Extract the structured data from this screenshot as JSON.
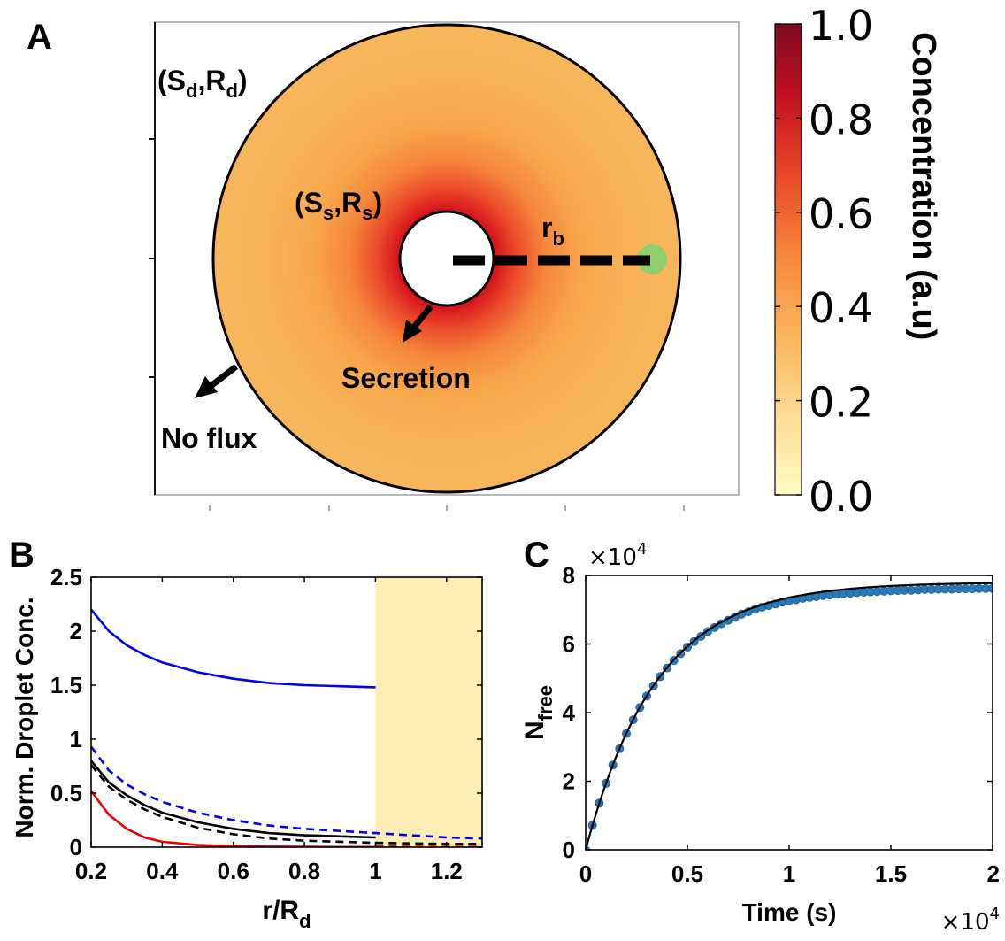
{
  "panels": {
    "A": {
      "letter": "A",
      "labels": {
        "droplet": "(S",
        "droplet_sub1": "d",
        "droplet_mid": ",R",
        "droplet_sub2": "d",
        "droplet_end": ")",
        "source": "(S",
        "source_sub1": "s",
        "source_mid": ",R",
        "source_sub2": "s",
        "source_end": ")",
        "rb": "r",
        "rb_sub": "b",
        "secretion": "Secretion",
        "no_flux": "No flux"
      },
      "colors": {
        "field_outer": "#f8b75a",
        "field_inner": "#d4111e",
        "marker": "#8fcf6b"
      }
    },
    "colorbar": {
      "label": "Concentration (a.u)",
      "ticks": [
        "1.0",
        "0.8",
        "0.6",
        "0.4",
        "0.2",
        "0.0"
      ],
      "tick_values": [
        1.0,
        0.8,
        0.6,
        0.4,
        0.2,
        0.0
      ],
      "range": [
        0,
        1
      ]
    },
    "B": {
      "letter": "B"
    },
    "C": {
      "letter": "C"
    }
  },
  "chart_data": [
    {
      "panel": "B",
      "type": "line",
      "xlabel": "r/R",
      "xlabel_sub": "d",
      "ylabel": "Norm. Droplet Conc.",
      "xlim": [
        0.2,
        1.3
      ],
      "ylim": [
        0,
        2.5
      ],
      "xticks": [
        0.2,
        0.4,
        0.6,
        0.8,
        1,
        1.2
      ],
      "xtick_labels": [
        "0.2",
        "0.4",
        "0.6",
        "0.8",
        "1",
        "1.2"
      ],
      "yticks": [
        0,
        0.5,
        1,
        1.5,
        2,
        2.5
      ],
      "ytick_labels": [
        "0",
        "0.5",
        "1",
        "1.5",
        "2",
        "2.5"
      ],
      "shaded_region": {
        "x": [
          1,
          1.3
        ],
        "color": "#fdedb4"
      },
      "series": [
        {
          "color": "#0000ee",
          "style": "solid",
          "x": [
            0.2,
            0.25,
            0.3,
            0.35,
            0.4,
            0.5,
            0.6,
            0.7,
            0.8,
            0.9,
            1.0
          ],
          "y": [
            2.2,
            2.0,
            1.87,
            1.78,
            1.71,
            1.62,
            1.56,
            1.52,
            1.5,
            1.49,
            1.48
          ]
        },
        {
          "color": "#0000ee",
          "style": "dashed",
          "x": [
            0.2,
            0.25,
            0.3,
            0.35,
            0.4,
            0.5,
            0.6,
            0.7,
            0.8,
            0.9,
            1.0,
            1.1,
            1.2,
            1.3
          ],
          "y": [
            0.93,
            0.71,
            0.58,
            0.49,
            0.42,
            0.32,
            0.25,
            0.2,
            0.17,
            0.15,
            0.13,
            0.11,
            0.09,
            0.08
          ]
        },
        {
          "color": "#000000",
          "style": "solid",
          "x": [
            0.2,
            0.25,
            0.3,
            0.35,
            0.4,
            0.5,
            0.6,
            0.7,
            0.8,
            0.9,
            1.0
          ],
          "y": [
            0.8,
            0.6,
            0.48,
            0.39,
            0.32,
            0.23,
            0.17,
            0.13,
            0.11,
            0.1,
            0.09
          ]
        },
        {
          "color": "#000000",
          "style": "dashed",
          "x": [
            0.2,
            0.25,
            0.3,
            0.35,
            0.4,
            0.5,
            0.6,
            0.7,
            0.8,
            0.9,
            1.0,
            1.1,
            1.2,
            1.3
          ],
          "y": [
            0.76,
            0.56,
            0.44,
            0.35,
            0.28,
            0.18,
            0.12,
            0.08,
            0.06,
            0.05,
            0.04,
            0.035,
            0.03,
            0.03
          ]
        },
        {
          "color": "#ee0000",
          "style": "solid",
          "x": [
            0.2,
            0.25,
            0.3,
            0.35,
            0.4,
            0.5,
            0.6,
            0.7,
            0.8,
            0.9,
            1.0
          ],
          "y": [
            0.52,
            0.3,
            0.17,
            0.09,
            0.05,
            0.02,
            0.01,
            0.005,
            0.003,
            0.002,
            0.002
          ]
        },
        {
          "color": "#ee0000",
          "style": "dashed",
          "x": [
            1.0,
            1.1,
            1.2,
            1.3
          ],
          "y": [
            0.005,
            0.004,
            0.004,
            0.004
          ]
        }
      ]
    },
    {
      "panel": "C",
      "type": "scatter",
      "xlabel": "Time (s)",
      "ylabel": "N",
      "ylabel_sub": "free",
      "xlim": [
        0,
        20000
      ],
      "ylim": [
        0,
        80000
      ],
      "xticks": [
        0,
        5000,
        10000,
        15000,
        20000
      ],
      "xtick_labels": [
        "0",
        "0.5",
        "1",
        "1.5",
        "2"
      ],
      "yticks": [
        0,
        20000,
        40000,
        60000,
        80000
      ],
      "ytick_labels": [
        "0",
        "2",
        "4",
        "6",
        "8"
      ],
      "x_multiplier": "×10",
      "x_multiplier_exp": "4",
      "y_multiplier": "×10",
      "y_multiplier_exp": "4",
      "fit": {
        "color": "#000000",
        "model": "saturating exponential",
        "plateau": 78000,
        "tau": 3500
      },
      "points_color": "#2a7ab9",
      "points": {
        "x": [
          0,
          333,
          667,
          1000,
          1333,
          1667,
          2000,
          2333,
          2667,
          3000,
          3333,
          3667,
          4000,
          4333,
          4667,
          5000,
          5333,
          5667,
          6000,
          6333,
          6667,
          7000,
          7333,
          7667,
          8000,
          8333,
          8667,
          9000,
          9333,
          9667,
          10000,
          10333,
          10667,
          11000,
          11333,
          11667,
          12000,
          12333,
          12667,
          13000,
          13333,
          13667,
          14000,
          14333,
          14667,
          15000,
          15333,
          15667,
          16000,
          16333,
          16667,
          17000,
          17333,
          17667,
          18000,
          18333,
          18667,
          19000,
          19333,
          19667,
          20000
        ],
        "y": [
          0,
          7100,
          13600,
          19400,
          24700,
          29500,
          33900,
          37900,
          41500,
          44800,
          47800,
          50500,
          53000,
          55200,
          57200,
          59100,
          60700,
          62200,
          63600,
          64800,
          65900,
          66900,
          67800,
          68700,
          69400,
          70100,
          70700,
          71200,
          71700,
          72200,
          72600,
          72900,
          73300,
          73600,
          73800,
          74100,
          74300,
          74500,
          74700,
          74800,
          75000,
          75100,
          75200,
          75300,
          75400,
          75500,
          75600,
          75700,
          75700,
          75800,
          75900,
          75900,
          76000,
          76000,
          76000,
          76100,
          76100,
          76100,
          76200,
          76200,
          76200
        ]
      }
    }
  ]
}
